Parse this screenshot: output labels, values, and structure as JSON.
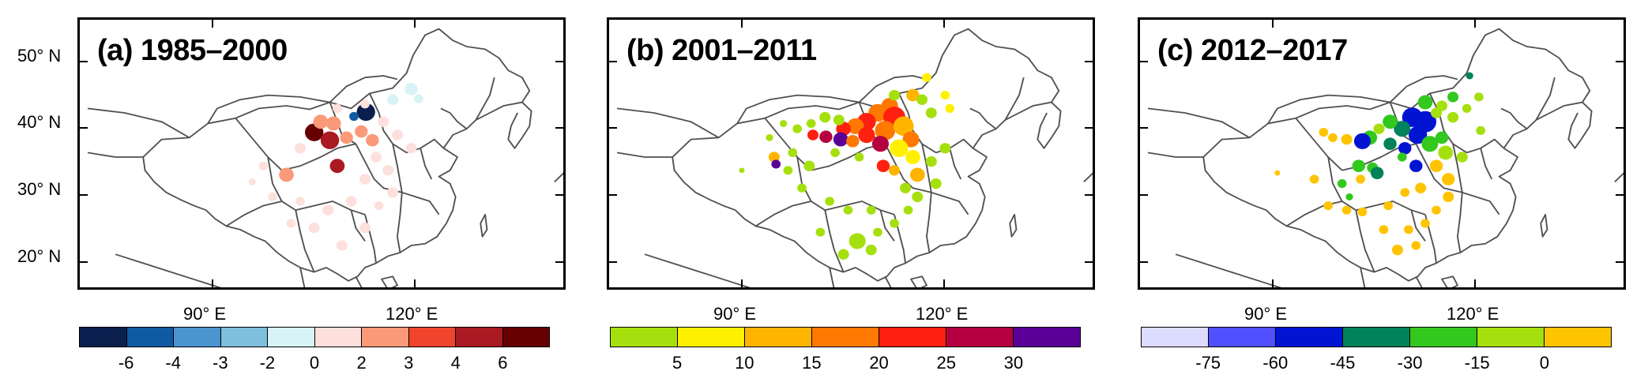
{
  "panels": [
    {
      "label": "(a) 1985–2000",
      "key": "a"
    },
    {
      "label": "(b) 2001–2011",
      "key": "b"
    },
    {
      "label": "(c) 2012–2017",
      "key": "c"
    }
  ],
  "axes": {
    "lat_labels": [
      "50° N",
      "40° N",
      "30° N",
      "20° N"
    ],
    "lon_labels": [
      "90° E",
      "120° E"
    ]
  },
  "colorbars": {
    "a": {
      "colors": [
        "#0b1f4f",
        "#0f5aa3",
        "#4a94cf",
        "#7dbfdc",
        "#d8f3f8",
        "#fde0dc",
        "#fb9a78",
        "#f0442c",
        "#a91a22",
        "#660000"
      ],
      "ticks": [
        "-6",
        "-4",
        "-3",
        "-2",
        "0",
        "2",
        "3",
        "4",
        "6"
      ]
    },
    "b": {
      "colors": [
        "#a5e00e",
        "#fff000",
        "#ffb400",
        "#ff7800",
        "#ff2010",
        "#b40040",
        "#5a0096"
      ],
      "ticks": [
        "5",
        "10",
        "15",
        "20",
        "25",
        "30"
      ]
    },
    "c": {
      "colors": [
        "#dcdcff",
        "#5050ff",
        "#0014d2",
        "#00825a",
        "#32c81e",
        "#a5e00e",
        "#ffc400"
      ],
      "ticks": [
        "-75",
        "-60",
        "-45",
        "-30",
        "-15",
        "0"
      ]
    }
  },
  "colors": {
    "frame": "#000000",
    "boundary": "#505050"
  }
}
